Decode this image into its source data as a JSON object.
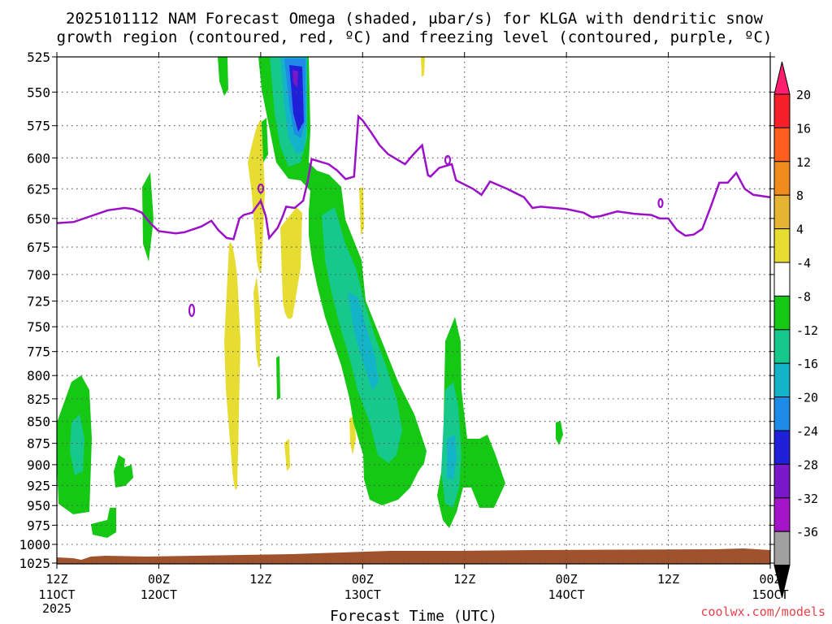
{
  "title": {
    "line1": "2025101112 NAM Forecast Omega (shaded, μbar/s) for KLGA with dendritic snow",
    "line2": "growth region (contoured, red, ºC) and freezing level (contoured, purple, ºC)"
  },
  "xaxis": {
    "label": "Forecast Time (UTC)",
    "year": "2025"
  },
  "credit": "coolwx.com/models",
  "colors": {
    "freezing_level": "#9b10c8",
    "ground": "#a0522d",
    "yellow": "#e6dc32",
    "green": "#14c814",
    "teal": "#16c88c",
    "cyan": "#14b4c8",
    "blue": "#1e8ce6",
    "darkblue": "#2020d8",
    "purple": "#7818c8"
  },
  "chart_data": {
    "type": "time-height shaded contour",
    "title": "2025101112 NAM Forecast Omega (shaded, μbar/s) for KLGA with dendritic snow growth region (contoured, red, ºC) and freezing level (contoured, purple, ºC)",
    "xlabel": "Forecast Time (UTC)",
    "ylabel": "",
    "x_hours_range": [
      0,
      84
    ],
    "y_levels_hPa": [
      525,
      550,
      575,
      600,
      625,
      650,
      675,
      700,
      725,
      750,
      775,
      800,
      825,
      850,
      875,
      900,
      925,
      950,
      975,
      1000,
      1025
    ],
    "ylim": [
      525,
      1040
    ],
    "x_ticks": [
      {
        "hour": 0,
        "time": "12Z",
        "date": "11OCT"
      },
      {
        "hour": 12,
        "time": "00Z",
        "date": "12OCT"
      },
      {
        "hour": 24,
        "time": "12Z",
        "date": ""
      },
      {
        "hour": 36,
        "time": "00Z",
        "date": "13OCT"
      },
      {
        "hour": 48,
        "time": "12Z",
        "date": ""
      },
      {
        "hour": 60,
        "time": "00Z",
        "date": "14OCT"
      },
      {
        "hour": 72,
        "time": "12Z",
        "date": ""
      },
      {
        "hour": 84,
        "time": "00Z",
        "date": "15OCT"
      }
    ],
    "colorbar": {
      "labels": [
        "20",
        "16",
        "12",
        "8",
        "4",
        "-4",
        "-8",
        "-12",
        "-16",
        "-20",
        "-24",
        "-28",
        "-32",
        "-36"
      ],
      "colors": [
        "#ff1f6e",
        "#f5202a",
        "#ff5f1e",
        "#f08c1e",
        "#e6b432",
        "#e6dc32",
        "#ffffff",
        "#14c814",
        "#16c88c",
        "#14b4c8",
        "#1e8ce6",
        "#2020d8",
        "#7818c8",
        "#a414c8",
        "#a0a0a0",
        "#000000"
      ]
    },
    "freezing_level_hPa": [
      [
        0,
        654
      ],
      [
        2,
        653
      ],
      [
        4,
        648
      ],
      [
        6,
        643
      ],
      [
        8,
        641
      ],
      [
        9,
        642
      ],
      [
        10,
        645
      ],
      [
        11,
        654
      ],
      [
        12,
        661
      ],
      [
        14,
        663
      ],
      [
        15,
        662
      ],
      [
        17,
        657
      ],
      [
        18.2,
        652
      ],
      [
        19,
        660
      ],
      [
        20,
        667
      ],
      [
        20.8,
        668
      ],
      [
        21.5,
        650
      ],
      [
        22,
        647
      ],
      [
        23,
        645
      ],
      [
        24,
        635
      ],
      [
        24.6,
        648
      ],
      [
        25,
        667
      ],
      [
        26,
        658
      ],
      [
        26.6,
        648
      ],
      [
        27,
        640
      ],
      [
        28,
        641
      ],
      [
        29,
        635
      ],
      [
        29.5,
        620
      ],
      [
        30,
        601
      ],
      [
        32,
        605
      ],
      [
        33,
        610
      ],
      [
        34,
        617
      ],
      [
        35,
        615
      ],
      [
        35.5,
        568
      ],
      [
        36,
        571
      ],
      [
        37,
        580
      ],
      [
        38,
        590
      ],
      [
        39,
        597
      ],
      [
        40,
        601
      ],
      [
        41,
        605
      ],
      [
        42,
        597
      ],
      [
        43,
        590
      ],
      [
        43.7,
        614
      ],
      [
        44,
        615
      ],
      [
        45,
        608
      ],
      [
        46.5,
        605
      ],
      [
        47,
        618
      ],
      [
        49,
        625
      ],
      [
        50,
        630
      ],
      [
        51,
        619
      ],
      [
        53,
        625
      ],
      [
        55,
        632
      ],
      [
        56,
        641
      ],
      [
        57,
        640
      ],
      [
        60,
        642
      ],
      [
        62,
        645
      ],
      [
        63,
        649
      ],
      [
        64,
        648
      ],
      [
        66,
        644
      ],
      [
        68,
        646
      ],
      [
        70,
        647
      ],
      [
        71,
        650
      ],
      [
        72,
        650
      ],
      [
        73,
        660
      ],
      [
        74,
        665
      ],
      [
        75,
        664
      ],
      [
        76,
        659
      ],
      [
        77,
        640
      ],
      [
        78,
        620
      ],
      [
        79,
        620
      ],
      [
        80,
        612
      ],
      [
        81,
        625
      ],
      [
        82,
        630
      ],
      [
        84,
        632
      ]
    ]
  }
}
